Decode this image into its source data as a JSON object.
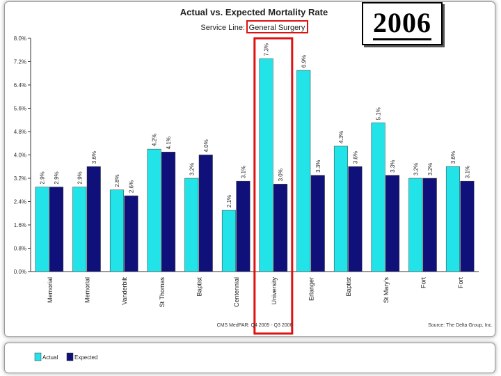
{
  "chart_data": {
    "type": "bar",
    "title": "Actual vs. Expected Mortality Rate",
    "subtitle_prefix": "Service Line:",
    "subtitle_value": "General Surgery",
    "categories": [
      "Memorial",
      "Memorial",
      "Vanderbilt",
      "St Thomas",
      "Baptist",
      "Centennial",
      "University",
      "Erlanger",
      "Baptist",
      "St Mary's",
      "Fort",
      "Fort"
    ],
    "series": [
      {
        "name": "Actual",
        "color": "#22e4e8",
        "values": [
          2.9,
          2.9,
          2.8,
          4.2,
          3.2,
          2.1,
          7.3,
          6.9,
          4.3,
          5.1,
          3.2,
          3.6
        ]
      },
      {
        "name": "Expected",
        "color": "#10107a",
        "values": [
          2.9,
          3.6,
          2.6,
          4.1,
          4.0,
          3.1,
          3.0,
          3.3,
          3.6,
          3.3,
          3.2,
          3.1
        ]
      }
    ],
    "value_labels": [
      [
        "2.9%",
        "2.9%",
        "2.8%",
        "4.2%",
        "3.2%",
        "2.1%",
        "7.3%",
        "6.9%",
        "4.3%",
        "5.1%",
        "3.2%",
        "3.6%"
      ],
      [
        "2.9%",
        "3.6%",
        "2.6%",
        "4.1%",
        "4.0%",
        "3.1%",
        "3.0%",
        "3.3%",
        "3.6%",
        "3.3%",
        "3.2%",
        "3.1%"
      ]
    ],
    "ylim": [
      0,
      8.0
    ],
    "yticks": [
      "0.0%",
      "0.8%",
      "1.6%",
      "2.4%",
      "3.2%",
      "4.0%",
      "4.8%",
      "5.6%",
      "6.4%",
      "7.2%",
      "8.0%"
    ],
    "ytick_values": [
      0,
      0.8,
      1.6,
      2.4,
      3.2,
      4.0,
      4.8,
      5.6,
      6.4,
      7.2,
      8.0
    ],
    "xlabel": "",
    "ylabel": "",
    "highlight_category": "University",
    "highlight_color": "#e01010",
    "footer_center": "CMS MedPAR: Q4 2005 - Q3 2006",
    "footer_right": "Source: The Delta Group, Inc.",
    "legend_placement": "bottom-left",
    "grid": false
  },
  "year_label": "2006"
}
